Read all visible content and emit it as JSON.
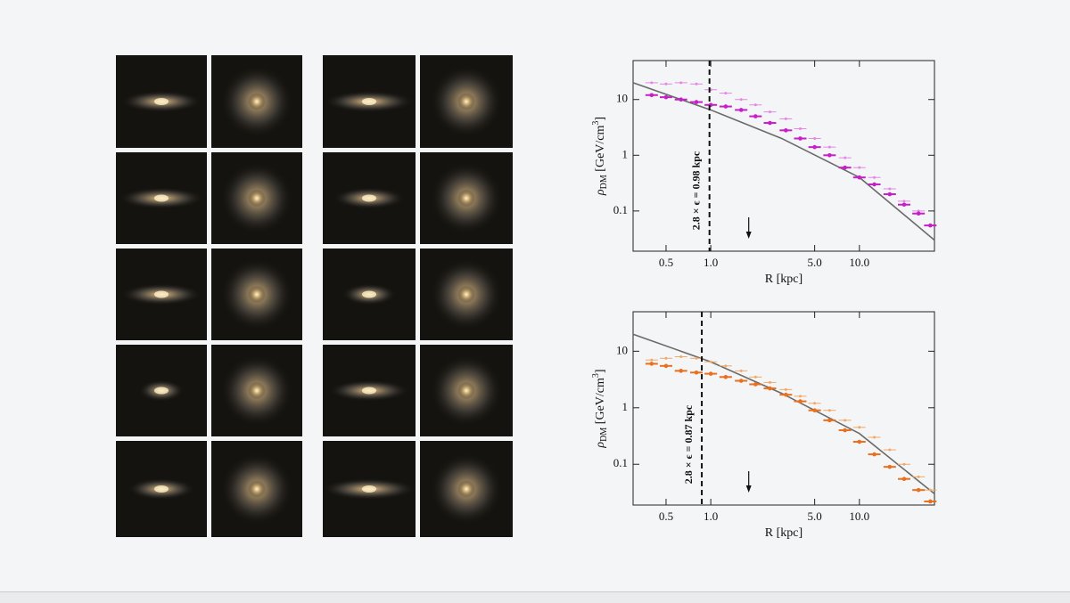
{
  "chart_data": [
    {
      "type": "scatter",
      "log_x": true,
      "log_y": true,
      "xlabel": "R [kpc]",
      "ylabel": {
        "symbol": "ρ",
        "subscript": "DM",
        "unit": " [GeV/cm",
        "superscript": "3",
        "close": "]"
      },
      "xlim": [
        0.3,
        32
      ],
      "ylim": [
        0.019,
        50
      ],
      "xticks": [
        0.5,
        {
          "value": 1,
          "label": "1.0"
        },
        {
          "value": 5,
          "label": "5.0"
        },
        {
          "value": 10,
          "label": "10.0"
        }
      ],
      "yticks": [
        0.1,
        1,
        10
      ],
      "threshold": {
        "value": 0.98,
        "label": "2.8 × ϵ = 0.98 kpc"
      },
      "arrow_x": 1.8,
      "curve": {
        "color": "#6b6b6b",
        "x": [
          0.3,
          1,
          3,
          10,
          32
        ],
        "values": [
          20,
          6.5,
          2,
          0.4,
          0.03
        ]
      },
      "series": [
        {
          "color": "#e487e4",
          "x": [
            0.4,
            0.5,
            0.63,
            0.8,
            1.0,
            1.26,
            1.6,
            2.0,
            2.5,
            3.2,
            4.0,
            5.0,
            6.3,
            8.0,
            10,
            12.6,
            16,
            20,
            25
          ],
          "values": [
            20,
            19,
            20,
            19,
            15,
            13,
            10,
            8,
            6,
            4.5,
            3,
            2,
            1.4,
            0.9,
            0.6,
            0.4,
            0.25,
            0.15,
            0.1
          ]
        },
        {
          "color": "#c71fc7",
          "x": [
            0.4,
            0.5,
            0.63,
            0.8,
            1.0,
            1.26,
            1.6,
            2.0,
            2.5,
            3.2,
            4.0,
            5.0,
            6.3,
            8.0,
            10,
            12.6,
            16,
            20,
            25,
            30
          ],
          "values": [
            12,
            11,
            10,
            9,
            8,
            7.5,
            6.5,
            5,
            3.8,
            2.8,
            2,
            1.4,
            1.0,
            0.6,
            0.4,
            0.3,
            0.2,
            0.13,
            0.09,
            0.055
          ]
        }
      ]
    },
    {
      "type": "scatter",
      "log_x": true,
      "log_y": true,
      "xlabel": "R [kpc]",
      "ylabel": {
        "symbol": "ρ",
        "subscript": "DM",
        "unit": " [GeV/cm",
        "superscript": "3",
        "close": "]"
      },
      "xlim": [
        0.3,
        32
      ],
      "ylim": [
        0.019,
        50
      ],
      "xticks": [
        0.5,
        {
          "value": 1,
          "label": "1.0"
        },
        {
          "value": 5,
          "label": "5.0"
        },
        {
          "value": 10,
          "label": "10.0"
        }
      ],
      "yticks": [
        0.1,
        1,
        10
      ],
      "threshold": {
        "value": 0.87,
        "label": "2.8 × ϵ = 0.87 kpc"
      },
      "arrow_x": 1.8,
      "curve": {
        "color": "#6b6b6b",
        "x": [
          0.3,
          1,
          3,
          10,
          32
        ],
        "values": [
          20,
          6.5,
          1.8,
          0.35,
          0.03
        ]
      },
      "series": [
        {
          "color": "#f2a868",
          "x": [
            0.4,
            0.5,
            0.63,
            0.8,
            1.0,
            1.26,
            1.6,
            2.0,
            2.5,
            3.2,
            4.0,
            5.0,
            6.3,
            8.0,
            10,
            12.6,
            16,
            20,
            25,
            30
          ],
          "values": [
            7,
            7.5,
            8,
            7.5,
            6.5,
            5.5,
            4.5,
            3.5,
            2.8,
            2.1,
            1.6,
            1.2,
            0.9,
            0.6,
            0.45,
            0.3,
            0.18,
            0.1,
            0.06,
            0.035
          ]
        },
        {
          "color": "#e8701e",
          "x": [
            0.4,
            0.5,
            0.63,
            0.8,
            1.0,
            1.26,
            1.6,
            2.0,
            2.5,
            3.2,
            4.0,
            5.0,
            6.3,
            8.0,
            10,
            12.6,
            16,
            20,
            25,
            30
          ],
          "values": [
            6,
            5.5,
            4.5,
            4.2,
            4,
            3.5,
            3,
            2.6,
            2.2,
            1.7,
            1.3,
            0.9,
            0.6,
            0.4,
            0.25,
            0.15,
            0.09,
            0.055,
            0.035,
            0.022
          ]
        }
      ]
    }
  ]
}
